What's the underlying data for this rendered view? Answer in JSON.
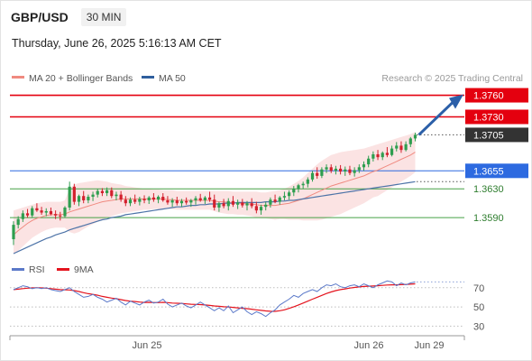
{
  "header": {
    "symbol": "GBP/USD",
    "timeframe": "30 MIN",
    "datetime": "Thursday, June 26, 2025 5:16:13 AM CET"
  },
  "legend": [
    {
      "label": "MA 20 + Bollinger Bands",
      "color": "#f08a80"
    },
    {
      "label": "MA 50",
      "color": "#2f5f9e"
    }
  ],
  "credit": "Research © 2025 Trading Central",
  "price_levels": [
    {
      "label": "1.3760",
      "value": 1.376,
      "color": "#e4000f",
      "style": "line",
      "tag": "filled"
    },
    {
      "label": "1.3730",
      "value": 1.373,
      "color": "#e4000f",
      "style": "line",
      "tag": "filled"
    },
    {
      "label": "1.3705",
      "value": 1.3705,
      "color": "#333333",
      "style": "dotted",
      "tag": "filled"
    },
    {
      "label": "1.3655",
      "value": 1.3655,
      "color": "#2d6ae0",
      "style": "line",
      "tag": "filled"
    },
    {
      "label": "1.3630",
      "value": 1.363,
      "color": "#46a046",
      "style": "line",
      "tag": "text"
    },
    {
      "label": "1.3590",
      "value": 1.359,
      "color": "#46a046",
      "style": "line",
      "tag": "text"
    }
  ],
  "colors": {
    "up": "#2e9e4f",
    "down": "#d3202d",
    "band_fill": "#fbe3e3",
    "ma20": "#f08a80",
    "ma50": "#4e74a8",
    "arrow": "#2b5fa8",
    "rsi": "#5b79c9",
    "rsi_ma": "#e4141e"
  },
  "rsi_legend": [
    {
      "label": "RSI",
      "color": "#5b79c9"
    },
    {
      "label": "9MA",
      "color": "#e4141e"
    }
  ],
  "rsi_levels": [
    "70",
    "50",
    "30"
  ],
  "x_labels": [
    "Jun 25",
    "Jun 26",
    "Jun 29"
  ],
  "chart_data": {
    "type": "candlestick",
    "price_ylim": [
      1.3535,
      1.3772
    ],
    "ohlc": [
      [
        1.356,
        1.3585,
        1.3552,
        1.358
      ],
      [
        1.358,
        1.3592,
        1.3575,
        1.3588
      ],
      [
        1.3588,
        1.36,
        1.3584,
        1.3596
      ],
      [
        1.3596,
        1.3602,
        1.359,
        1.3593
      ],
      [
        1.3593,
        1.3606,
        1.359,
        1.3603
      ],
      [
        1.3603,
        1.361,
        1.3598,
        1.36
      ],
      [
        1.36,
        1.3605,
        1.3594,
        1.3597
      ],
      [
        1.3597,
        1.3603,
        1.3592,
        1.3599
      ],
      [
        1.3599,
        1.3604,
        1.3593,
        1.3595
      ],
      [
        1.3595,
        1.36,
        1.3588,
        1.3593
      ],
      [
        1.3593,
        1.3598,
        1.3586,
        1.3592
      ],
      [
        1.3592,
        1.3606,
        1.359,
        1.3604
      ],
      [
        1.3604,
        1.364,
        1.36,
        1.3633
      ],
      [
        1.3633,
        1.3637,
        1.3608,
        1.3612
      ],
      [
        1.3612,
        1.3622,
        1.3606,
        1.362
      ],
      [
        1.362,
        1.3627,
        1.361,
        1.3614
      ],
      [
        1.3614,
        1.3622,
        1.361,
        1.3619
      ],
      [
        1.3619,
        1.3626,
        1.3613,
        1.3622
      ],
      [
        1.3622,
        1.363,
        1.3618,
        1.3627
      ],
      [
        1.3627,
        1.3631,
        1.362,
        1.3624
      ],
      [
        1.3624,
        1.3632,
        1.362,
        1.3628
      ],
      [
        1.3628,
        1.3632,
        1.3617,
        1.362
      ],
      [
        1.362,
        1.3626,
        1.3614,
        1.3622
      ],
      [
        1.3622,
        1.3627,
        1.3612,
        1.3615
      ],
      [
        1.3615,
        1.362,
        1.3606,
        1.361
      ],
      [
        1.361,
        1.3618,
        1.3606,
        1.3615
      ],
      [
        1.3615,
        1.3622,
        1.3609,
        1.3612
      ],
      [
        1.3612,
        1.3619,
        1.3607,
        1.3616
      ],
      [
        1.3616,
        1.3621,
        1.361,
        1.3614
      ],
      [
        1.3614,
        1.362,
        1.3609,
        1.3618
      ],
      [
        1.3618,
        1.3624,
        1.3612,
        1.3615
      ],
      [
        1.3615,
        1.3621,
        1.361,
        1.3619
      ],
      [
        1.3619,
        1.3624,
        1.3612,
        1.3614
      ],
      [
        1.3614,
        1.362,
        1.3608,
        1.3611
      ],
      [
        1.3611,
        1.3617,
        1.3605,
        1.3614
      ],
      [
        1.3614,
        1.3619,
        1.3607,
        1.361
      ],
      [
        1.361,
        1.3616,
        1.3605,
        1.3613
      ],
      [
        1.3613,
        1.3618,
        1.3608,
        1.3611
      ],
      [
        1.3611,
        1.3616,
        1.3605,
        1.3614
      ],
      [
        1.3614,
        1.362,
        1.3608,
        1.3617
      ],
      [
        1.3617,
        1.3623,
        1.3612,
        1.3614
      ],
      [
        1.3614,
        1.362,
        1.3609,
        1.3618
      ],
      [
        1.3618,
        1.3626,
        1.3612,
        1.3615
      ],
      [
        1.3615,
        1.3622,
        1.36,
        1.3604
      ],
      [
        1.3604,
        1.3612,
        1.3598,
        1.361
      ],
      [
        1.361,
        1.3616,
        1.3603,
        1.3606
      ],
      [
        1.3606,
        1.3617,
        1.36,
        1.3613
      ],
      [
        1.3613,
        1.362,
        1.3605,
        1.3608
      ],
      [
        1.3608,
        1.3615,
        1.3602,
        1.3611
      ],
      [
        1.3611,
        1.3616,
        1.3604,
        1.3607
      ],
      [
        1.3607,
        1.3613,
        1.36,
        1.361
      ],
      [
        1.361,
        1.3617,
        1.3603,
        1.3606
      ],
      [
        1.3606,
        1.3612,
        1.3596,
        1.36
      ],
      [
        1.36,
        1.3608,
        1.3594,
        1.3605
      ],
      [
        1.3605,
        1.3612,
        1.36,
        1.3608
      ],
      [
        1.3608,
        1.3618,
        1.3604,
        1.3615
      ],
      [
        1.3615,
        1.3622,
        1.361,
        1.3612
      ],
      [
        1.3612,
        1.362,
        1.3608,
        1.3618
      ],
      [
        1.3618,
        1.3626,
        1.3614,
        1.362
      ],
      [
        1.362,
        1.3628,
        1.3615,
        1.3625
      ],
      [
        1.3625,
        1.3634,
        1.362,
        1.363
      ],
      [
        1.363,
        1.3637,
        1.3625,
        1.3635
      ],
      [
        1.3635,
        1.364,
        1.363,
        1.3637
      ],
      [
        1.3637,
        1.3646,
        1.3632,
        1.3643
      ],
      [
        1.3643,
        1.3655,
        1.364,
        1.3652
      ],
      [
        1.3652,
        1.366,
        1.3644,
        1.3648
      ],
      [
        1.3648,
        1.366,
        1.3645,
        1.3657
      ],
      [
        1.3657,
        1.3664,
        1.3652,
        1.366
      ],
      [
        1.366,
        1.3664,
        1.3652,
        1.3655
      ],
      [
        1.3655,
        1.3662,
        1.365,
        1.3658
      ],
      [
        1.3658,
        1.3663,
        1.365,
        1.3654
      ],
      [
        1.3654,
        1.3661,
        1.3648,
        1.3657
      ],
      [
        1.3657,
        1.3662,
        1.3649,
        1.3652
      ],
      [
        1.3652,
        1.366,
        1.3647,
        1.3656
      ],
      [
        1.3656,
        1.3664,
        1.3652,
        1.366
      ],
      [
        1.366,
        1.3668,
        1.3655,
        1.3664
      ],
      [
        1.3664,
        1.3676,
        1.366,
        1.3672
      ],
      [
        1.3672,
        1.3682,
        1.3668,
        1.3678
      ],
      [
        1.3678,
        1.3684,
        1.367,
        1.3674
      ],
      [
        1.3674,
        1.3682,
        1.367,
        1.368
      ],
      [
        1.368,
        1.3688,
        1.3674,
        1.3677
      ],
      [
        1.3677,
        1.369,
        1.3675,
        1.3686
      ],
      [
        1.3686,
        1.3695,
        1.3682,
        1.369
      ],
      [
        1.369,
        1.3696,
        1.368,
        1.3684
      ],
      [
        1.3684,
        1.3696,
        1.3682,
        1.3692
      ],
      [
        1.3692,
        1.3702,
        1.3688,
        1.37
      ],
      [
        1.37,
        1.3708,
        1.3696,
        1.3705
      ]
    ],
    "ma20": [
      1.3566,
      1.3572,
      1.3577,
      1.3582,
      1.3586,
      1.3589,
      1.3591,
      1.3593,
      1.3594,
      1.3594,
      1.3594,
      1.3595,
      1.3598,
      1.36,
      1.3602,
      1.3604,
      1.3606,
      1.3608,
      1.361,
      1.3612,
      1.3613,
      1.3614,
      1.3615,
      1.3616,
      1.3616,
      1.3616,
      1.3616,
      1.3616,
      1.3616,
      1.3616,
      1.3616,
      1.3616,
      1.3616,
      1.3615,
      1.3615,
      1.3614,
      1.3614,
      1.3614,
      1.3614,
      1.3614,
      1.3614,
      1.3614,
      1.3614,
      1.3613,
      1.3612,
      1.3612,
      1.3611,
      1.3611,
      1.361,
      1.361,
      1.3609,
      1.3609,
      1.3608,
      1.3607,
      1.3607,
      1.3607,
      1.3607,
      1.3608,
      1.3609,
      1.361,
      1.3612,
      1.3614,
      1.3616,
      1.3619,
      1.3622,
      1.3625,
      1.3628,
      1.3631,
      1.3634,
      1.3636,
      1.3638,
      1.364,
      1.3642,
      1.3644,
      1.3646,
      1.3648,
      1.3651,
      1.3654,
      1.3656,
      1.3659,
      1.3662,
      1.3665,
      1.3668,
      1.3671,
      1.3674,
      1.3677,
      1.3681
    ],
    "bb_upper": [
      1.36,
      1.3602,
      1.3604,
      1.3606,
      1.3608,
      1.361,
      1.3611,
      1.3612,
      1.3612,
      1.3612,
      1.3612,
      1.3614,
      1.363,
      1.3636,
      1.3638,
      1.3639,
      1.364,
      1.3641,
      1.3642,
      1.3641,
      1.364,
      1.3638,
      1.3637,
      1.3636,
      1.3634,
      1.3633,
      1.3632,
      1.3631,
      1.363,
      1.363,
      1.3629,
      1.3629,
      1.3628,
      1.3628,
      1.3628,
      1.3627,
      1.3627,
      1.3627,
      1.3627,
      1.3627,
      1.3627,
      1.3627,
      1.3627,
      1.3627,
      1.3627,
      1.3627,
      1.3627,
      1.3626,
      1.3626,
      1.3626,
      1.3626,
      1.3626,
      1.3626,
      1.3625,
      1.3625,
      1.3626,
      1.3627,
      1.3628,
      1.363,
      1.3633,
      1.3637,
      1.3641,
      1.3646,
      1.3652,
      1.3658,
      1.3664,
      1.3669,
      1.3673,
      1.3677,
      1.3679,
      1.3681,
      1.3682,
      1.3683,
      1.3684,
      1.3685,
      1.3686,
      1.3688,
      1.369,
      1.3692,
      1.3694,
      1.3696,
      1.3698,
      1.37,
      1.3702,
      1.3704,
      1.3706,
      1.3709
    ],
    "bb_lower": [
      1.354,
      1.3544,
      1.355,
      1.3556,
      1.3562,
      1.3566,
      1.357,
      1.3573,
      1.3575,
      1.3576,
      1.3576,
      1.3576,
      1.357,
      1.3568,
      1.357,
      1.3574,
      1.3578,
      1.3581,
      1.3584,
      1.3587,
      1.359,
      1.3592,
      1.3594,
      1.3596,
      1.3597,
      1.3598,
      1.3599,
      1.36,
      1.3601,
      1.3601,
      1.3602,
      1.3602,
      1.3602,
      1.3602,
      1.3602,
      1.3601,
      1.3601,
      1.3601,
      1.3601,
      1.3601,
      1.3601,
      1.3601,
      1.3601,
      1.3599,
      1.3597,
      1.3596,
      1.3595,
      1.3595,
      1.3594,
      1.3594,
      1.3593,
      1.3592,
      1.359,
      1.3589,
      1.3589,
      1.3588,
      1.3587,
      1.3588,
      1.3588,
      1.3587,
      1.3587,
      1.3587,
      1.3586,
      1.3586,
      1.3586,
      1.3586,
      1.3587,
      1.3589,
      1.3591,
      1.3593,
      1.3595,
      1.3598,
      1.3601,
      1.3604,
      1.3607,
      1.361,
      1.3614,
      1.3618,
      1.362,
      1.3624,
      1.3628,
      1.3632,
      1.3636,
      1.364,
      1.3644,
      1.3648,
      1.3653
    ],
    "ma50": [
      1.354,
      1.3543,
      1.3546,
      1.3549,
      1.3552,
      1.3555,
      1.3558,
      1.3561,
      1.3563,
      1.3566,
      1.3568,
      1.357,
      1.3573,
      1.3575,
      1.3577,
      1.3579,
      1.3581,
      1.3583,
      1.3585,
      1.3587,
      1.3588,
      1.359,
      1.3591,
      1.3592,
      1.3594,
      1.3595,
      1.3596,
      1.3597,
      1.3598,
      1.3599,
      1.36,
      1.3601,
      1.3602,
      1.3603,
      1.3604,
      1.3605,
      1.3605,
      1.3606,
      1.3607,
      1.3607,
      1.3608,
      1.3608,
      1.3609,
      1.3609,
      1.3609,
      1.361,
      1.361,
      1.361,
      1.3611,
      1.3611,
      1.3611,
      1.3611,
      1.3611,
      1.3611,
      1.3612,
      1.3612,
      1.3612,
      1.3613,
      1.3613,
      1.3614,
      1.3614,
      1.3615,
      1.3616,
      1.3617,
      1.3618,
      1.3619,
      1.362,
      1.3621,
      1.3622,
      1.3623,
      1.3624,
      1.3625,
      1.3626,
      1.3627,
      1.3628,
      1.3629,
      1.363,
      1.3631,
      1.3632,
      1.3633,
      1.3634,
      1.3635,
      1.3636,
      1.3637,
      1.3638,
      1.3639,
      1.364
    ],
    "projection": {
      "from": 1.3705,
      "to": 1.376,
      "bars_ahead": 11
    },
    "rsi_ylim": [
      20,
      82
    ],
    "rsi": [
      68,
      70,
      72,
      71,
      69,
      70,
      69,
      70,
      68,
      67,
      66,
      68,
      70,
      66,
      63,
      60,
      61,
      63,
      60,
      58,
      55,
      57,
      59,
      55,
      52,
      56,
      54,
      52,
      55,
      57,
      54,
      55,
      58,
      53,
      50,
      52,
      54,
      51,
      49,
      52,
      55,
      52,
      49,
      46,
      49,
      46,
      51,
      44,
      47,
      50,
      45,
      42,
      45,
      43,
      40,
      44,
      47,
      52,
      55,
      58,
      62,
      60,
      64,
      66,
      68,
      66,
      70,
      73,
      72,
      74,
      71,
      70,
      72,
      73,
      71,
      74,
      72,
      70,
      73,
      75,
      77,
      76,
      72,
      75,
      73,
      75,
      76
    ],
    "rsi_9ma": [
      68,
      68.5,
      69,
      69.5,
      69.8,
      70,
      69.8,
      69.5,
      69,
      68.5,
      68,
      67.8,
      67.6,
      67,
      66,
      64.8,
      63.8,
      63,
      62.2,
      61,
      60,
      59.2,
      58.5,
      57.6,
      56.6,
      56,
      55.6,
      55,
      54.7,
      54.8,
      54.6,
      54.5,
      54.8,
      54.5,
      54,
      53.8,
      53.6,
      53.2,
      52.8,
      52.6,
      52.4,
      52,
      51.6,
      51,
      50.6,
      50.2,
      50,
      49.5,
      49,
      48.6,
      48.2,
      47.6,
      47,
      46.4,
      45.8,
      45.5,
      45.4,
      46,
      47,
      48.5,
      50.2,
      52,
      54,
      56,
      58,
      60,
      62,
      64,
      65.6,
      67,
      68,
      68.8,
      69.6,
      70.3,
      70.8,
      71.3,
      71.6,
      71.8,
      72,
      72.4,
      72.8,
      73,
      73,
      73.2,
      73.4,
      73.6,
      74
    ]
  }
}
